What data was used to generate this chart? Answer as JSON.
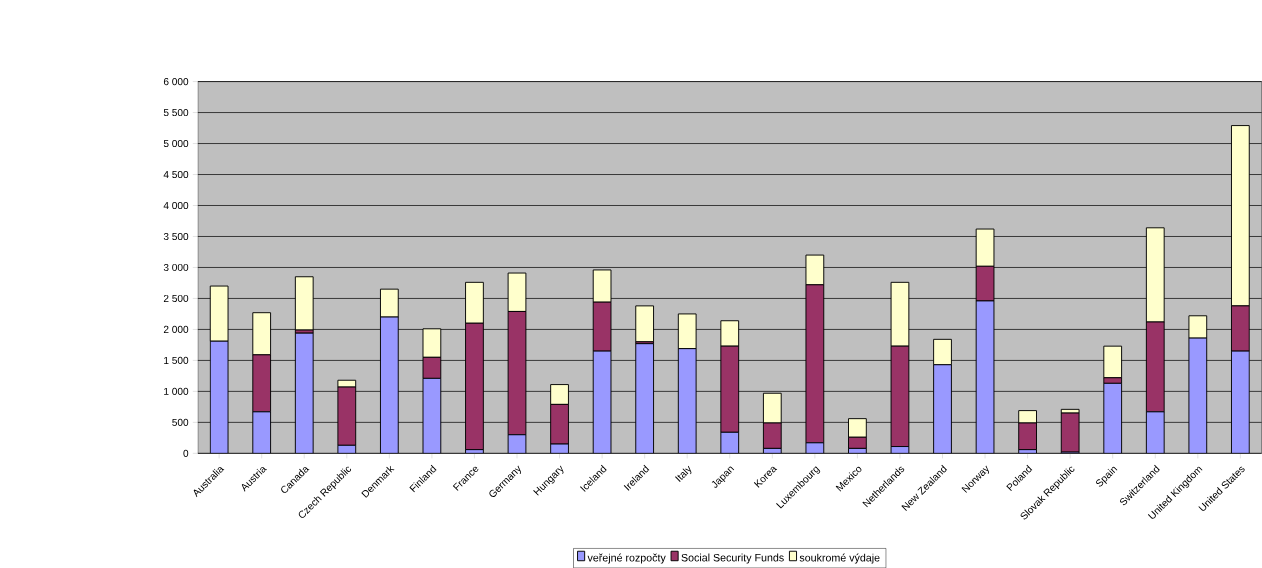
{
  "chart_data": {
    "type": "bar",
    "stacked": true,
    "grid": "y",
    "legend": "bottom",
    "categories": [
      "Australia",
      "Austria",
      "Canada",
      "Czech Republic",
      "Denmark",
      "Finland",
      "France",
      "Germany",
      "Hungary",
      "Iceland",
      "Ireland",
      "Italy",
      "Japan",
      "Korea",
      "Luxembourg",
      "Mexico",
      "Netherlands",
      "New Zealand",
      "Norway",
      "Poland",
      "Slovak Republic",
      "Spain",
      "Switzerland",
      "United Kingdom",
      "United States"
    ],
    "series": [
      {
        "name": "veřejné rozpočty",
        "color": "#9999ff",
        "values": [
          1810,
          670,
          1940,
          130,
          2200,
          1210,
          60,
          300,
          150,
          1650,
          1770,
          1690,
          340,
          80,
          170,
          80,
          110,
          1430,
          2460,
          60,
          20,
          1130,
          670,
          1860,
          1650
        ]
      },
      {
        "name": "Social Security Funds",
        "color": "#993366",
        "values": [
          0,
          920,
          50,
          940,
          0,
          340,
          2040,
          1990,
          640,
          790,
          30,
          0,
          1390,
          410,
          2550,
          180,
          1620,
          0,
          560,
          430,
          630,
          90,
          1450,
          0,
          730
        ]
      },
      {
        "name": "soukromé výdaje",
        "color": "#ffffcc",
        "values": [
          890,
          680,
          860,
          110,
          450,
          460,
          660,
          620,
          320,
          520,
          580,
          560,
          410,
          480,
          480,
          300,
          1030,
          410,
          600,
          200,
          60,
          510,
          1520,
          360,
          2910
        ]
      }
    ],
    "ylim": [
      0,
      6000
    ],
    "yticks": [
      0,
      500,
      {
        "value": 1000,
        "label": "1 000"
      },
      {
        "value": 1500,
        "label": "1 500"
      },
      {
        "value": 2000,
        "label": "2 000"
      },
      {
        "value": 2500,
        "label": "2 500"
      },
      {
        "value": 3000,
        "label": "3 000"
      },
      {
        "value": 3500,
        "label": "3 500"
      },
      {
        "value": 4000,
        "label": "4 000"
      },
      {
        "value": 4500,
        "label": "4 500"
      },
      {
        "value": 5000,
        "label": "5 000"
      },
      {
        "value": 5500,
        "label": "5 500"
      },
      {
        "value": 6000,
        "label": "6 000"
      }
    ]
  }
}
